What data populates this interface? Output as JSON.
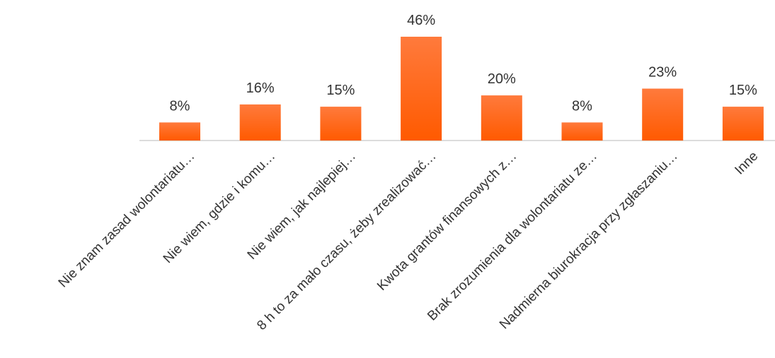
{
  "chart_data": {
    "type": "bar",
    "categories": [
      "Nie znam zasad wolontariatu…",
      "Nie wiem, gdzie i komu…",
      "Nie wiem, jak najlepiej…",
      "8 h to za mało czasu, żeby zrealizować…",
      "Kwota grantów finansowych z…",
      "Brak zrozumienia dla wolontariatu ze…",
      "Nadmierna biurokracja przy zgłaszaniu…",
      "Inne"
    ],
    "values": [
      8,
      16,
      15,
      46,
      20,
      8,
      23,
      15
    ],
    "data_labels": [
      "8%",
      "16%",
      "15%",
      "46%",
      "20%",
      "8%",
      "23%",
      "15%"
    ],
    "title": "",
    "xlabel": "",
    "ylabel": "",
    "ylim": [
      0,
      46
    ],
    "grid": false,
    "legend": "none",
    "colors": {
      "bar_top": "#ff7a3c",
      "bar_bottom": "#ff5a00",
      "axis": "#d0d0d0",
      "text": "#333333"
    }
  }
}
